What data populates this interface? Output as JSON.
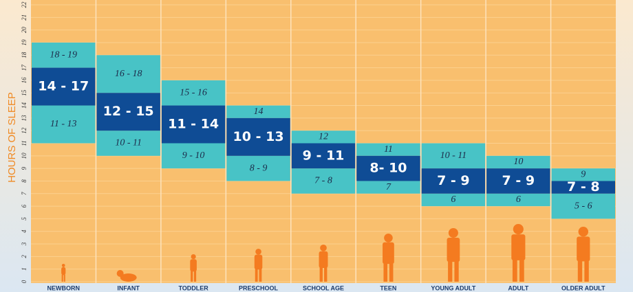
{
  "chart_data": {
    "type": "range",
    "y_label": "HOURS OF SLEEP",
    "ylim": [
      0,
      22
    ],
    "yticks": [
      0,
      1,
      2,
      3,
      4,
      5,
      6,
      7,
      8,
      9,
      10,
      11,
      12,
      13,
      14,
      15,
      16,
      17,
      18,
      19,
      20,
      21,
      22
    ],
    "grid": true,
    "categories": [
      "NEWBORN",
      "INFANT",
      "TODDLER",
      "PRESCHOOL",
      "SCHOOL AGE",
      "TEEN",
      "YOUNG ADULT",
      "ADULT",
      "OLDER ADULT"
    ],
    "recommended": {
      "color": "#0f4c95",
      "values": [
        [
          14,
          17
        ],
        [
          12,
          15
        ],
        [
          11,
          14
        ],
        [
          10,
          13
        ],
        [
          9,
          11
        ],
        [
          8,
          10
        ],
        [
          7,
          9
        ],
        [
          7,
          9
        ],
        [
          7,
          8
        ]
      ],
      "value_labels": [
        "14 - 17",
        "12 - 15",
        "11 - 14",
        "10 - 13",
        "9 - 11",
        "8- 10",
        "7 - 9",
        "7 - 9",
        "7 - 8"
      ]
    },
    "low": {
      "color": "#48c3c6",
      "values": [
        [
          11,
          13
        ],
        [
          10,
          11
        ],
        [
          9,
          10
        ],
        [
          8,
          9
        ],
        [
          7,
          8
        ],
        [
          7
        ],
        [
          6
        ],
        [
          6
        ],
        [
          5,
          6
        ]
      ],
      "value_labels": [
        "11 - 13",
        "10 - 11",
        "9 - 10",
        "8 - 9",
        "7 - 8",
        "7",
        "6",
        "6",
        "5 - 6"
      ]
    },
    "high": {
      "color": "#48c3c6",
      "values": [
        [
          18,
          19
        ],
        [
          16,
          18
        ],
        [
          15,
          16
        ],
        [
          14
        ],
        [
          12
        ],
        [
          11
        ],
        [
          10,
          11
        ],
        [
          10
        ],
        [
          9
        ]
      ],
      "value_labels": [
        "18 - 19",
        "16 - 18",
        "15 - 16",
        "14",
        "12",
        "11",
        "10 - 11",
        "10",
        "9"
      ]
    }
  }
}
